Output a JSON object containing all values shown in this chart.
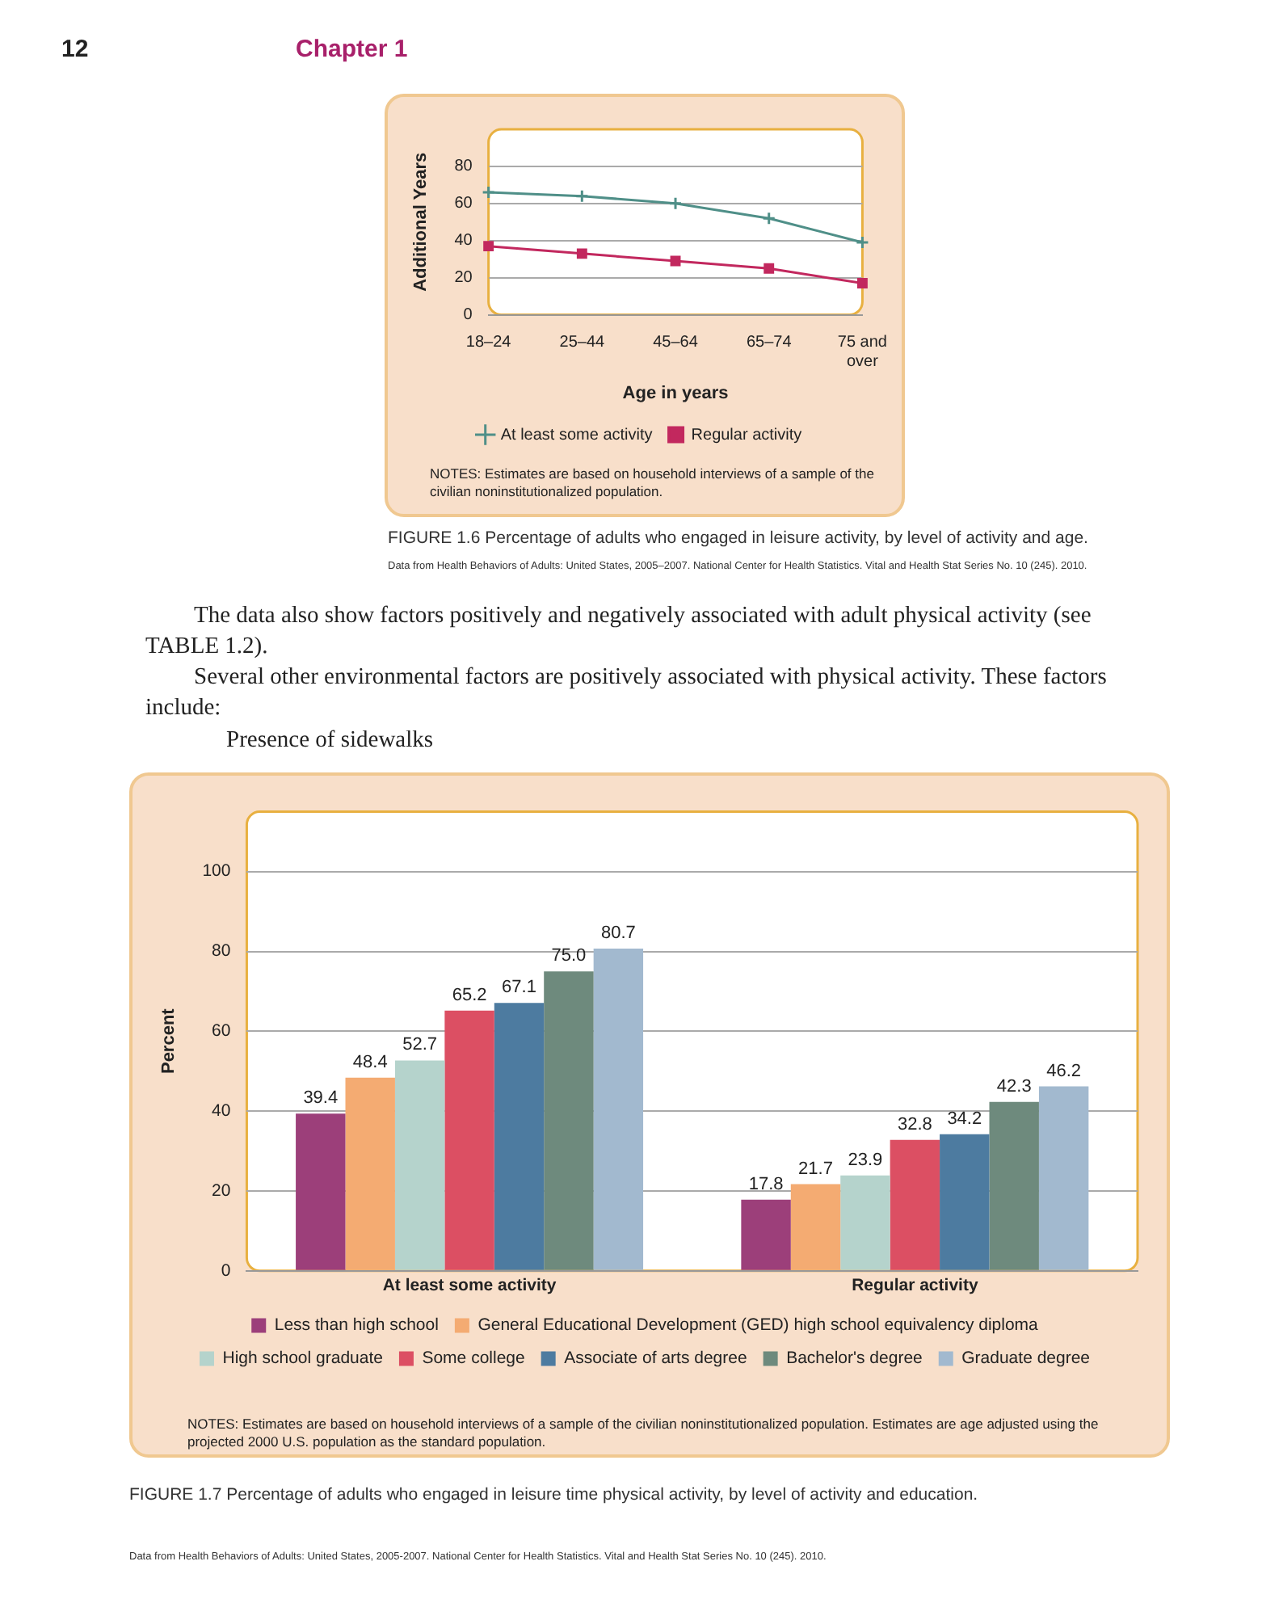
{
  "chart_data": [
    {
      "type": "line",
      "xlabel": "Age in years",
      "ylabel": "Additional Years",
      "categories": [
        "18–24",
        "25–44",
        "45–64",
        "65–74",
        "75 and over"
      ],
      "series": [
        {
          "name": "At least some activity",
          "color": "#4f8f88",
          "marker": "cross",
          "values": [
            66,
            64,
            60,
            52,
            39
          ]
        },
        {
          "name": "Regular activity",
          "color": "#c2285e",
          "marker": "square",
          "values": [
            37,
            33,
            29,
            25,
            17
          ]
        }
      ],
      "ylim": [
        0,
        100
      ],
      "yticks": [
        0,
        20,
        40,
        60,
        80
      ],
      "grid": "y",
      "legend": "bottom",
      "annotations": [
        "12",
        "Chapter 1",
        "NOTES: Estimates are based on household interviews of a sample of the civilian noninstitutionalized population.",
        "FIGURE 1.6  Percentage of adults who engaged in leisure activity, by level of activity and age.",
        "Data from Health Behaviors of Adults: United States, 2005–2007. National Center for Health Statistics. Vital and Health Stat Series No. 10 (245). 2010."
      ]
    },
    {
      "type": "bar",
      "ylabel": "Percent",
      "categories": [
        "At least some activity",
        "Regular activity"
      ],
      "series": [
        {
          "name": "Less than high school",
          "color": "#9c3f7a",
          "values": [
            39.4,
            17.8
          ],
          "value_labels": [
            "39.4",
            "17.8"
          ]
        },
        {
          "name": "General Educational Development (GED) high school equivalency diploma",
          "color": "#f4ab72",
          "values": [
            48.4,
            21.7
          ],
          "value_labels": [
            "48.4",
            "21.7"
          ]
        },
        {
          "name": "High school graduate",
          "color": "#b5d3cc",
          "values": [
            52.7,
            23.9
          ],
          "value_labels": [
            "52.7",
            "23.9"
          ]
        },
        {
          "name": "Some college",
          "color": "#dc4f63",
          "values": [
            65.2,
            32.8
          ],
          "value_labels": [
            "65.2",
            "32.8"
          ]
        },
        {
          "name": "Associate of arts degree",
          "color": "#4d7ba0",
          "values": [
            67.1,
            34.2
          ],
          "value_labels": [
            "67.1",
            "34.2"
          ]
        },
        {
          "name": "Bachelor's degree",
          "color": "#6e8a7d",
          "values": [
            75.0,
            42.3
          ],
          "value_labels": [
            "75.0",
            "42.3"
          ]
        },
        {
          "name": "Graduate degree",
          "color": "#a2b9cf",
          "values": [
            80.7,
            46.2
          ],
          "value_labels": [
            "80.7",
            "46.2"
          ]
        }
      ],
      "ylim": [
        0,
        115
      ],
      "yticks": [
        0,
        20,
        40,
        60,
        80,
        100
      ],
      "grid": "y",
      "legend": "bottom",
      "annotations": [
        "The data also show factors positively and negatively associated with adult physical activity (see TABLE 1.2).",
        "Several other environmental factors are positively associated with physical activity. These factors include:",
        "Presence of sidewalks",
        "NOTES: Estimates are based on household interviews of a sample of the civilian noninstitutionalized population. Estimates are age adjusted using the projected 2000 U.S. population as the standard population.",
        "FIGURE 1.7  Percentage of adults who engaged in leisure time physical activity, by level of activity and education.",
        "Data from Health Behaviors of Adults: United States, 2005-2007. National Center for Health Statistics. Vital and Health Stat Series No. 10 (245). 2010."
      ]
    }
  ]
}
